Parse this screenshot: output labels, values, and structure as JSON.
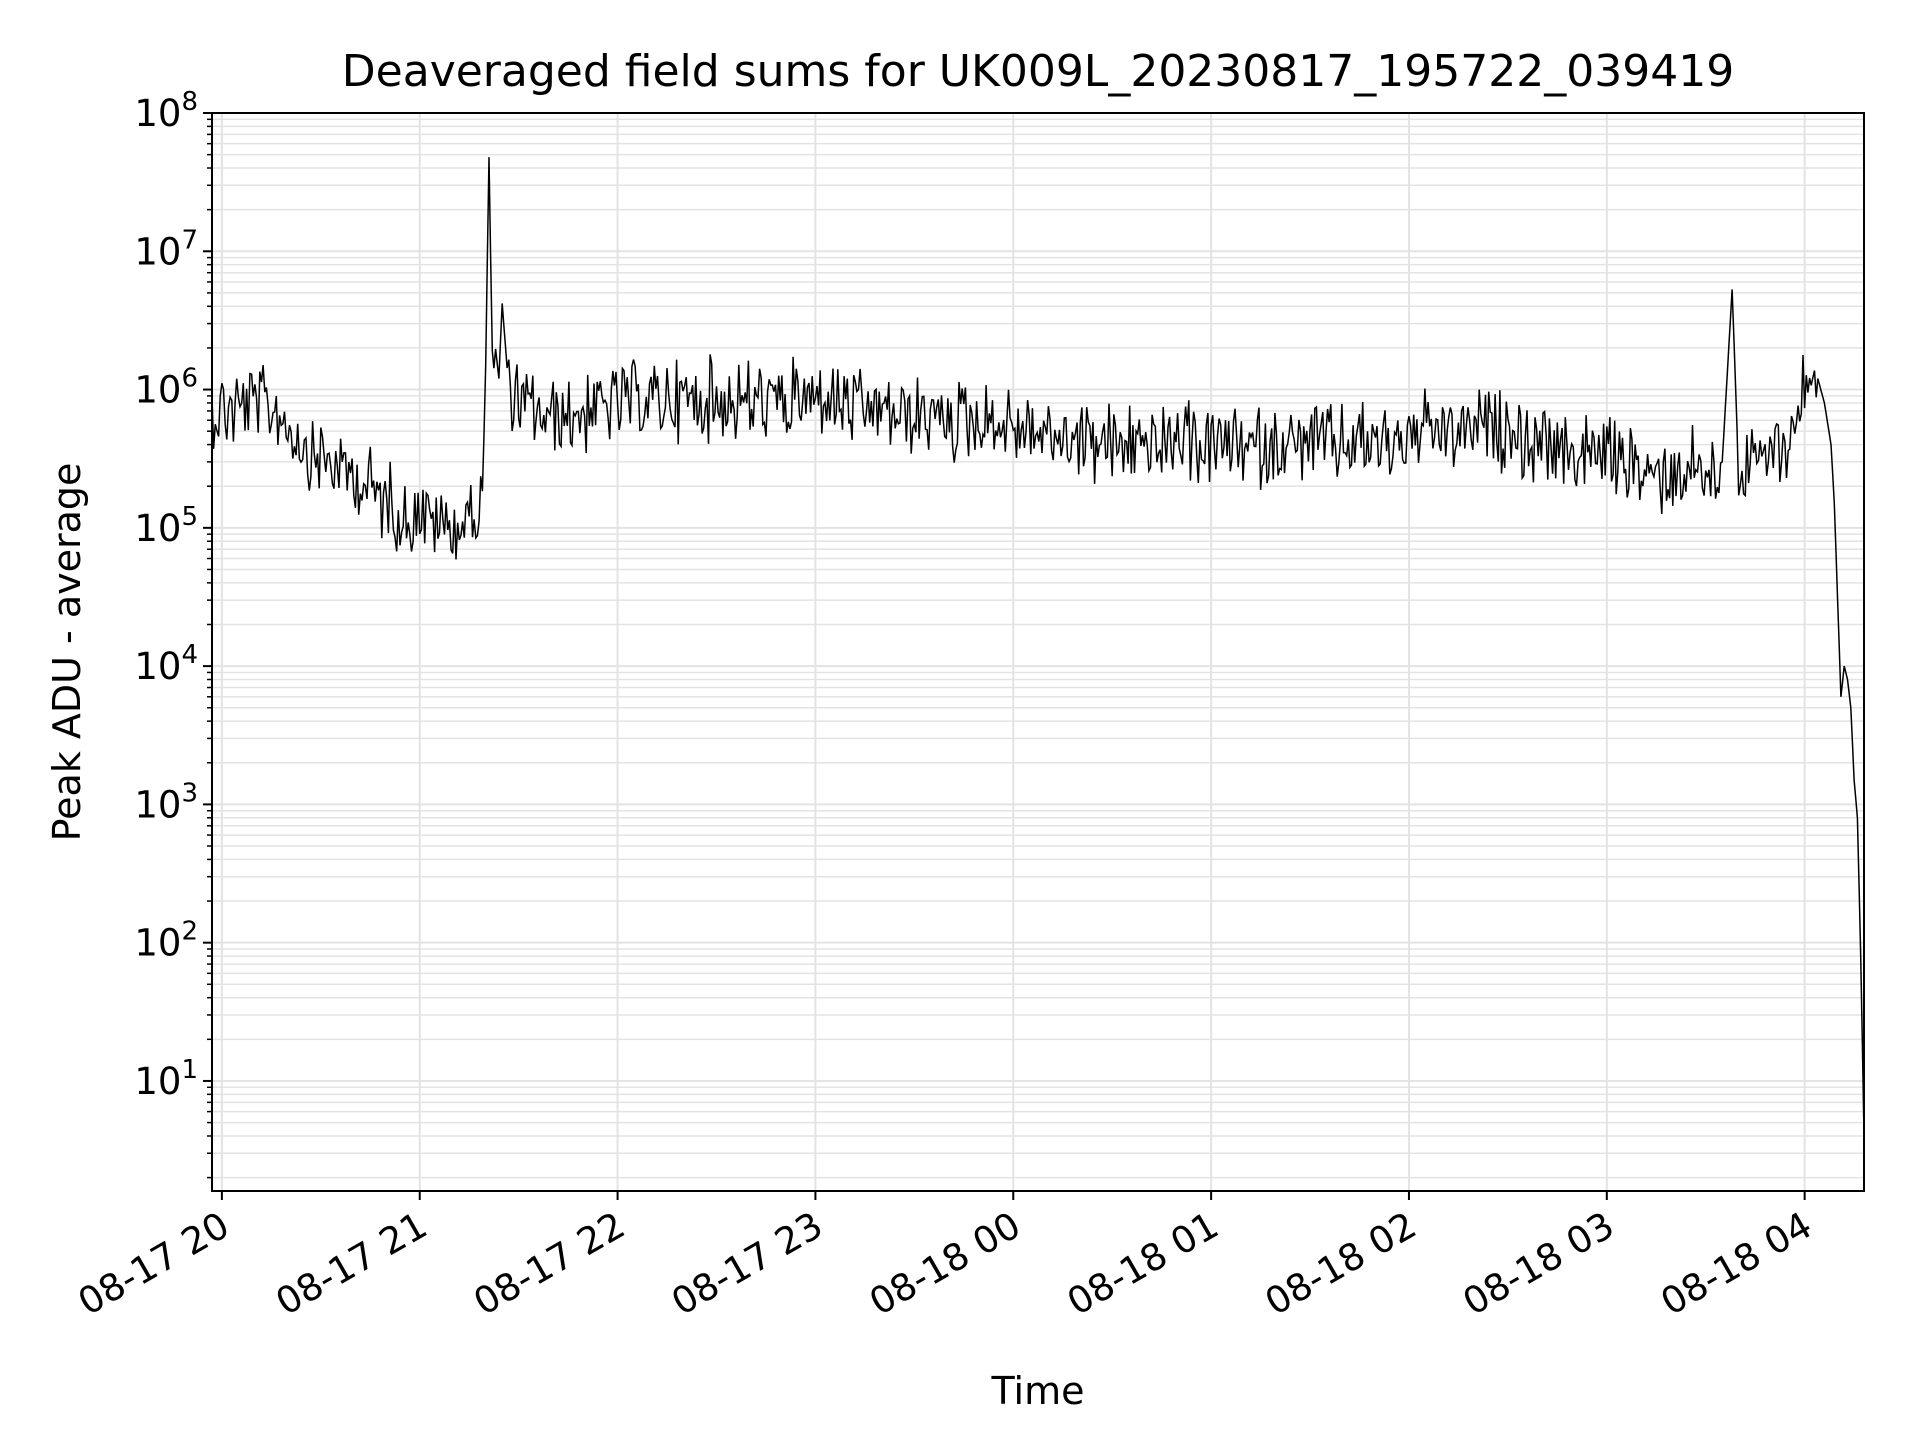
{
  "chart_data": {
    "type": "line",
    "title": "Deaveraged field sums for UK009L_20230817_195722_039419",
    "xlabel": "Time",
    "ylabel": "Peak ADU - average",
    "y_scale": "log",
    "ylim": [
      1.6,
      100000000
    ],
    "xlim": [
      "2023-08-17 19:57",
      "2023-08-18 04:18"
    ],
    "x_ticks": [
      {
        "t": "2023-08-17 20:00",
        "label": "08-17 20"
      },
      {
        "t": "2023-08-17 21:00",
        "label": "08-17 21"
      },
      {
        "t": "2023-08-17 22:00",
        "label": "08-17 22"
      },
      {
        "t": "2023-08-17 23:00",
        "label": "08-17 23"
      },
      {
        "t": "2023-08-18 00:00",
        "label": "08-18 00"
      },
      {
        "t": "2023-08-18 01:00",
        "label": "08-18 01"
      },
      {
        "t": "2023-08-18 02:00",
        "label": "08-18 02"
      },
      {
        "t": "2023-08-18 03:00",
        "label": "08-18 03"
      },
      {
        "t": "2023-08-18 04:00",
        "label": "08-18 04"
      }
    ],
    "y_ticks": [
      {
        "value": 10,
        "base": "10",
        "exp": "1"
      },
      {
        "value": 100,
        "base": "10",
        "exp": "2"
      },
      {
        "value": 1000,
        "base": "10",
        "exp": "3"
      },
      {
        "value": 10000,
        "base": "10",
        "exp": "4"
      },
      {
        "value": 100000,
        "base": "10",
        "exp": "5"
      },
      {
        "value": 1000000,
        "base": "10",
        "exp": "6"
      },
      {
        "value": 10000000,
        "base": "10",
        "exp": "7"
      },
      {
        "value": 100000000,
        "base": "10",
        "exp": "8"
      }
    ],
    "grid": true,
    "line_color": "#000000",
    "grid_color": "#e3e3e3",
    "series": [
      {
        "x": [
          "2023-08-17 19:57",
          "2023-08-17 20:05",
          "2023-08-17 20:12",
          "2023-08-17 20:18",
          "2023-08-17 20:25",
          "2023-08-17 20:32",
          "2023-08-17 20:38",
          "2023-08-17 20:45",
          "2023-08-17 20:50",
          "2023-08-17 20:55",
          "2023-08-17 21:00",
          "2023-08-17 21:05",
          "2023-08-17 21:10",
          "2023-08-17 21:15",
          "2023-08-17 21:19",
          "2023-08-17 21:20",
          "2023-08-17 21:21",
          "2023-08-17 21:22",
          "2023-08-17 21:24",
          "2023-08-17 21:25",
          "2023-08-17 21:27",
          "2023-08-17 21:30",
          "2023-08-17 21:40",
          "2023-08-17 21:50",
          "2023-08-17 22:00",
          "2023-08-17 22:15",
          "2023-08-17 22:30",
          "2023-08-17 22:45",
          "2023-08-17 23:00",
          "2023-08-17 23:15",
          "2023-08-17 23:30",
          "2023-08-17 23:45",
          "2023-08-18 00:00",
          "2023-08-18 00:15",
          "2023-08-18 00:30",
          "2023-08-18 00:45",
          "2023-08-18 01:00",
          "2023-08-18 01:15",
          "2023-08-18 01:30",
          "2023-08-18 01:45",
          "2023-08-18 02:00",
          "2023-08-18 02:15",
          "2023-08-18 02:30",
          "2023-08-18 02:45",
          "2023-08-18 03:00",
          "2023-08-18 03:10",
          "2023-08-18 03:20",
          "2023-08-18 03:25",
          "2023-08-18 03:30",
          "2023-08-18 03:35",
          "2023-08-18 03:38",
          "2023-08-18 03:40",
          "2023-08-18 03:45",
          "2023-08-18 03:50",
          "2023-08-18 03:55",
          "2023-08-18 03:58",
          "2023-08-18 04:02",
          "2023-08-18 04:04",
          "2023-08-18 04:06",
          "2023-08-18 04:08",
          "2023-08-18 04:09",
          "2023-08-18 04:10",
          "2023-08-18 04:11",
          "2023-08-18 04:12",
          "2023-08-18 04:13",
          "2023-08-18 04:14",
          "2023-08-18 04:15",
          "2023-08-18 04:16",
          "2023-08-18 04:17",
          "2023-08-18 04:18"
        ],
        "y": [
          700000,
          750000,
          800000,
          650000,
          400000,
          300000,
          250000,
          200000,
          150000,
          120000,
          130000,
          110000,
          100000,
          120000,
          150000,
          1500000,
          48000000,
          1800000,
          1200000,
          4200000,
          1000000,
          800000,
          600000,
          700000,
          800000,
          850000,
          850000,
          800000,
          850000,
          700000,
          650000,
          600000,
          550000,
          450000,
          400000,
          400000,
          400000,
          380000,
          400000,
          420000,
          450000,
          500000,
          500000,
          350000,
          350000,
          250000,
          250000,
          300000,
          250000,
          300000,
          5300000,
          250000,
          300000,
          350000,
          400000,
          800000,
          1200000,
          1200000,
          800000,
          400000,
          150000,
          30000,
          6000,
          10000,
          8000,
          5000,
          1500,
          800,
          80,
          4
        ]
      }
    ]
  }
}
